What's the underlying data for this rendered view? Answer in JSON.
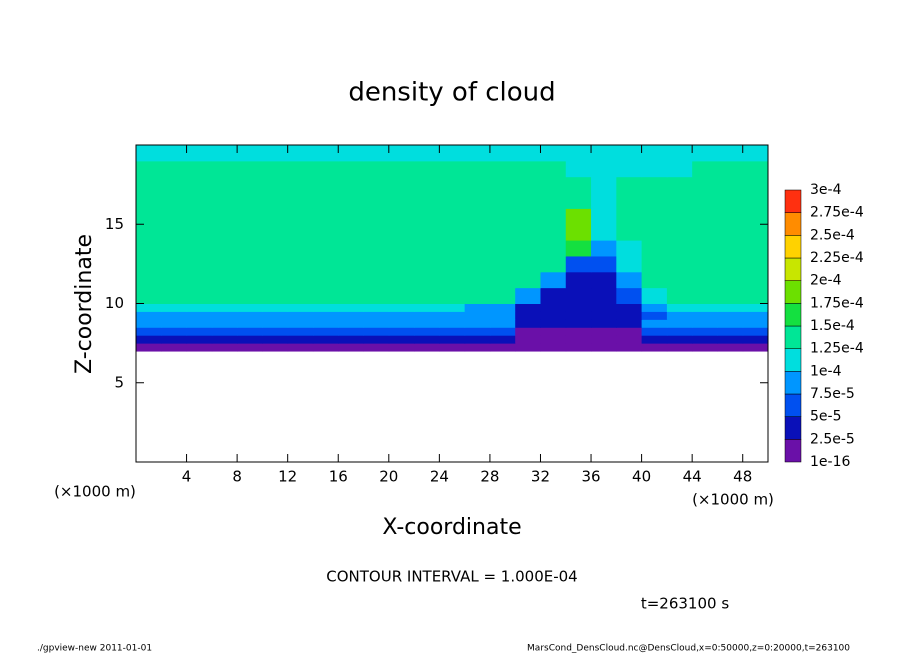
{
  "chart_data": {
    "type": "heatmap",
    "title": "density of cloud",
    "x_label": "X-coordinate",
    "y_label": "Z-coordinate",
    "x_unit": "(×1000 m)",
    "y_unit": "(×1000 m)",
    "annotation": "CONTOUR INTERVAL = 1.000E-04",
    "time_label": "t=263100 s",
    "footer_left": "./gpview-new  2011-01-01",
    "footer_right": "MarsCond_DensCloud.nc@DensCloud,x=0:50000,z=0:20000,t=263100",
    "xlim": [
      0,
      50
    ],
    "ylim": [
      0,
      20
    ],
    "xticks": [
      4,
      8,
      12,
      16,
      20,
      24,
      28,
      32,
      36,
      40,
      44,
      48
    ],
    "yticks": [
      5,
      10,
      15
    ],
    "xbins": [
      0,
      2,
      4,
      6,
      8,
      10,
      12,
      14,
      16,
      18,
      20,
      22,
      24,
      26,
      28,
      30,
      32,
      34,
      36,
      38,
      40,
      42,
      44,
      46,
      48,
      50
    ],
    "ybins": [
      0,
      7,
      7.5,
      8,
      8.5,
      9,
      9.5,
      10,
      11,
      12,
      13,
      14,
      16,
      18,
      19,
      20
    ],
    "values": [
      [
        null,
        null,
        null,
        null,
        null,
        null,
        null,
        null,
        null,
        null,
        null,
        null,
        null,
        null,
        null,
        null,
        null,
        null,
        null,
        null,
        null,
        null,
        null,
        null,
        null
      ],
      [
        1e-05,
        1e-05,
        1e-05,
        1e-05,
        1e-05,
        1e-05,
        1e-05,
        1e-05,
        1e-05,
        1e-05,
        1e-05,
        1e-05,
        1e-05,
        1e-05,
        1e-05,
        1e-05,
        1e-05,
        1e-05,
        1e-05,
        1e-05,
        1e-05,
        1e-05,
        1e-05,
        1e-05,
        1e-05
      ],
      [
        3e-05,
        3e-05,
        3e-05,
        3e-05,
        3e-05,
        3e-05,
        3e-05,
        3e-05,
        3e-05,
        3e-05,
        3e-05,
        3e-05,
        3e-05,
        3e-05,
        3e-05,
        1e-05,
        1e-05,
        1e-05,
        1e-05,
        1e-05,
        3e-05,
        3e-05,
        3e-05,
        3e-05,
        3e-05
      ],
      [
        6e-05,
        6e-05,
        6e-05,
        6e-05,
        6e-05,
        6e-05,
        6e-05,
        6e-05,
        6e-05,
        6e-05,
        6e-05,
        6e-05,
        6e-05,
        6e-05,
        6e-05,
        2e-05,
        2e-05,
        2e-05,
        2e-05,
        2e-05,
        6e-05,
        6e-05,
        6e-05,
        6e-05,
        6e-05
      ],
      [
        8e-05,
        8e-05,
        8e-05,
        8e-05,
        8e-05,
        8e-05,
        8e-05,
        8e-05,
        8e-05,
        8e-05,
        8e-05,
        8e-05,
        8e-05,
        8e-05,
        8e-05,
        4e-05,
        4e-05,
        4e-05,
        4e-05,
        4e-05,
        8e-05,
        8e-05,
        8e-05,
        8e-05,
        8e-05
      ],
      [
        9e-05,
        9e-05,
        9e-05,
        9e-05,
        9e-05,
        9e-05,
        9e-05,
        9e-05,
        9e-05,
        9e-05,
        9e-05,
        9e-05,
        9e-05,
        9e-05,
        9e-05,
        3e-05,
        3e-05,
        3e-05,
        3e-05,
        3e-05,
        5e-05,
        9e-05,
        9e-05,
        9e-05,
        9e-05
      ],
      [
        0.00011,
        0.00011,
        0.00011,
        0.00011,
        0.00011,
        0.00011,
        0.00011,
        0.00011,
        0.00011,
        0.00011,
        0.00011,
        0.00011,
        0.00011,
        9e-05,
        9e-05,
        4e-05,
        4e-05,
        4e-05,
        4e-05,
        4e-05,
        9e-05,
        0.00011,
        0.00011,
        0.00011,
        0.00011
      ],
      [
        0.00013,
        0.00013,
        0.00013,
        0.00013,
        0.00013,
        0.00013,
        0.00013,
        0.00013,
        0.00013,
        0.00013,
        0.00013,
        0.00013,
        0.00013,
        0.00013,
        0.00013,
        9e-05,
        4e-05,
        4e-05,
        4e-05,
        6e-05,
        0.00011,
        0.00013,
        0.00013,
        0.00013,
        0.00013
      ],
      [
        0.000135,
        0.000135,
        0.000135,
        0.000135,
        0.000135,
        0.000135,
        0.000135,
        0.000135,
        0.000135,
        0.000135,
        0.000135,
        0.000135,
        0.000135,
        0.000135,
        0.000135,
        0.000135,
        8e-05,
        3e-05,
        3e-05,
        9e-05,
        0.000135,
        0.000135,
        0.000135,
        0.000135,
        0.000135
      ],
      [
        0.00014,
        0.00014,
        0.00014,
        0.00014,
        0.00014,
        0.00014,
        0.00014,
        0.00014,
        0.00014,
        0.00014,
        0.00014,
        0.00014,
        0.00014,
        0.00014,
        0.00014,
        0.00014,
        0.00014,
        5e-05,
        5e-05,
        0.00011,
        0.00014,
        0.00014,
        0.00014,
        0.00014,
        0.00014
      ],
      [
        0.00014,
        0.00014,
        0.00014,
        0.00014,
        0.00014,
        0.00014,
        0.00014,
        0.00014,
        0.00014,
        0.00014,
        0.00014,
        0.00014,
        0.00014,
        0.00014,
        0.00014,
        0.00014,
        0.00014,
        0.00016,
        8e-05,
        0.00012,
        0.00014,
        0.00014,
        0.00014,
        0.00014,
        0.00014
      ],
      [
        0.00014,
        0.00014,
        0.00014,
        0.00014,
        0.00014,
        0.00014,
        0.00014,
        0.00014,
        0.00014,
        0.00014,
        0.00014,
        0.00014,
        0.00014,
        0.00014,
        0.00014,
        0.00014,
        0.00014,
        0.00018,
        0.00011,
        0.000125,
        0.00014,
        0.00014,
        0.00014,
        0.00014,
        0.00014
      ],
      [
        0.000135,
        0.000135,
        0.000135,
        0.000135,
        0.000135,
        0.000135,
        0.000135,
        0.000135,
        0.000135,
        0.000135,
        0.000135,
        0.000135,
        0.000135,
        0.000135,
        0.000135,
        0.000135,
        0.000135,
        0.000135,
        0.00012,
        0.00013,
        0.00013,
        0.000135,
        0.000135,
        0.000135,
        0.000135
      ],
      [
        0.00013,
        0.00013,
        0.00013,
        0.00013,
        0.00013,
        0.00013,
        0.00013,
        0.00013,
        0.00013,
        0.00013,
        0.00013,
        0.00013,
        0.00013,
        0.00013,
        0.00013,
        0.00013,
        0.00013,
        0.000115,
        0.000115,
        0.000115,
        0.000115,
        0.000115,
        0.00013,
        0.00013,
        0.00013
      ],
      [
        0.00012,
        0.00012,
        0.00012,
        0.00012,
        0.00012,
        0.00012,
        0.00012,
        0.00012,
        0.00012,
        0.00012,
        0.00012,
        0.00012,
        0.00012,
        0.00012,
        0.00012,
        0.00012,
        0.000105,
        0.000105,
        0.000105,
        0.000105,
        0.000105,
        0.000105,
        0.000105,
        0.00012,
        0.00012
      ]
    ],
    "levels": [
      {
        "value": 1e-16,
        "label": "1e-16"
      },
      {
        "value": 2.5e-05,
        "label": "2.5e-5"
      },
      {
        "value": 5e-05,
        "label": "5e-5"
      },
      {
        "value": 7.5e-05,
        "label": "7.5e-5"
      },
      {
        "value": 0.0001,
        "label": "1e-4"
      },
      {
        "value": 0.000125,
        "label": "1.25e-4"
      },
      {
        "value": 0.00015,
        "label": "1.5e-4"
      },
      {
        "value": 0.000175,
        "label": "1.75e-4"
      },
      {
        "value": 0.0002,
        "label": "2e-4"
      },
      {
        "value": 0.000225,
        "label": "2.25e-4"
      },
      {
        "value": 0.00025,
        "label": "2.5e-4"
      },
      {
        "value": 0.000275,
        "label": "2.75e-4"
      },
      {
        "value": 0.0003,
        "label": "3e-4"
      }
    ],
    "colors": [
      "#6a10a8",
      "#0a10b8",
      "#0050f0",
      "#0096ff",
      "#00dede",
      "#00e696",
      "#14e040",
      "#6ce000",
      "#c8e600",
      "#ffd200",
      "#ff8c00",
      "#ff3010"
    ]
  }
}
